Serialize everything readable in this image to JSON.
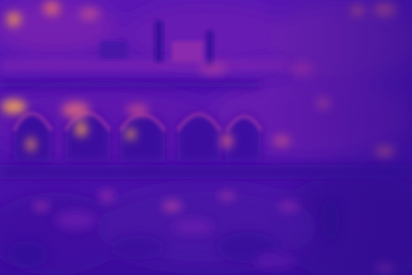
{
  "image": {
    "kind": "false-color heatmap (plasma-style colormap) of a building facade with arched windows",
    "palette": {
      "darkest": "#2a0c8c",
      "dark": "#3d0fa3",
      "base": "#5714b0",
      "mid": "#7a1fb3",
      "warm": "#a83aa0",
      "hot": "#d46a7a",
      "hottest": "#f2a35a"
    }
  }
}
